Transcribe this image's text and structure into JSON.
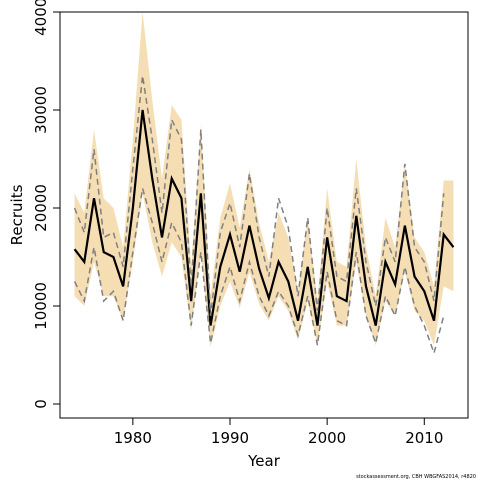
{
  "chart_data": {
    "type": "line",
    "x_label": "Year",
    "y_label": "Recruits",
    "footer": "stockassessment.org, CBH    WBGFAS2014, r4820",
    "x": [
      1974,
      1975,
      1976,
      1977,
      1978,
      1979,
      1980,
      1981,
      1982,
      1983,
      1984,
      1985,
      1986,
      1987,
      1988,
      1989,
      1990,
      1991,
      1992,
      1993,
      1994,
      1995,
      1996,
      1997,
      1998,
      1999,
      2000,
      2001,
      2002,
      2003,
      2004,
      2005,
      2006,
      2007,
      2008,
      2009,
      2010,
      2011,
      2012,
      2013
    ],
    "band": {
      "color": "#f5deb3",
      "upper": [
        21500,
        19500,
        28000,
        21000,
        20000,
        16000,
        27000,
        40000,
        31000,
        23000,
        30500,
        29000,
        14000,
        28500,
        11000,
        19000,
        22500,
        18000,
        24000,
        18500,
        14500,
        19500,
        17000,
        11500,
        19000,
        10500,
        22000,
        14500,
        14000,
        25000,
        16000,
        11000,
        19000,
        16000,
        24500,
        17000,
        15500,
        12000,
        22800,
        22800
      ],
      "lower": [
        11000,
        10000,
        14500,
        11000,
        11000,
        8500,
        14500,
        21500,
        16500,
        13000,
        16500,
        15000,
        7500,
        15500,
        5800,
        10000,
        12500,
        9800,
        13500,
        10200,
        8500,
        11000,
        9500,
        6500,
        10500,
        6000,
        12500,
        8000,
        8000,
        14500,
        9000,
        6000,
        10500,
        9000,
        13500,
        9500,
        8500,
        6000,
        12000,
        11500
      ]
    },
    "series": [
      {
        "color": "#000000",
        "dashed": false,
        "values": [
          15800,
          14500,
          21000,
          15500,
          15000,
          12000,
          20000,
          30000,
          23000,
          17000,
          23000,
          21000,
          10500,
          21500,
          8000,
          14000,
          17300,
          13500,
          18200,
          13800,
          10800,
          14500,
          12500,
          8500,
          14000,
          8000,
          17000,
          11000,
          10500,
          19200,
          12000,
          8000,
          14500,
          12200,
          18200,
          13000,
          11500,
          8500,
          17300,
          16000
        ]
      },
      {
        "color": "#808080",
        "dashed": true,
        "values": [
          20000,
          17500,
          26000,
          17000,
          17500,
          14000,
          24000,
          33500,
          27000,
          19500,
          29000,
          27000,
          12000,
          28000,
          9000,
          17500,
          20500,
          16000,
          23500,
          17000,
          13000,
          21000,
          18000,
          11000,
          19000,
          9500,
          20000,
          13000,
          12500,
          22000,
          14500,
          10000,
          17000,
          14500,
          24500,
          16000,
          14500,
          10500,
          21500,
          null
        ]
      },
      {
        "color": "#808080",
        "dashed": true,
        "values": [
          12500,
          10500,
          16000,
          10500,
          11500,
          8500,
          15500,
          22000,
          18500,
          14500,
          18500,
          16500,
          8000,
          15500,
          6200,
          11000,
          14000,
          10500,
          14500,
          11000,
          9000,
          11500,
          10000,
          7000,
          11000,
          6000,
          13500,
          8500,
          8000,
          15500,
          9000,
          6200,
          11000,
          9000,
          14000,
          10000,
          8000,
          5200,
          9000,
          null
        ]
      }
    ],
    "xlim": [
      1972.5,
      2014.5
    ],
    "xticks": [
      1980,
      1990,
      2000,
      2010
    ],
    "ylim": [
      -1430,
      40000
    ],
    "yticks": [
      0,
      10000,
      20000,
      30000,
      40000
    ]
  }
}
